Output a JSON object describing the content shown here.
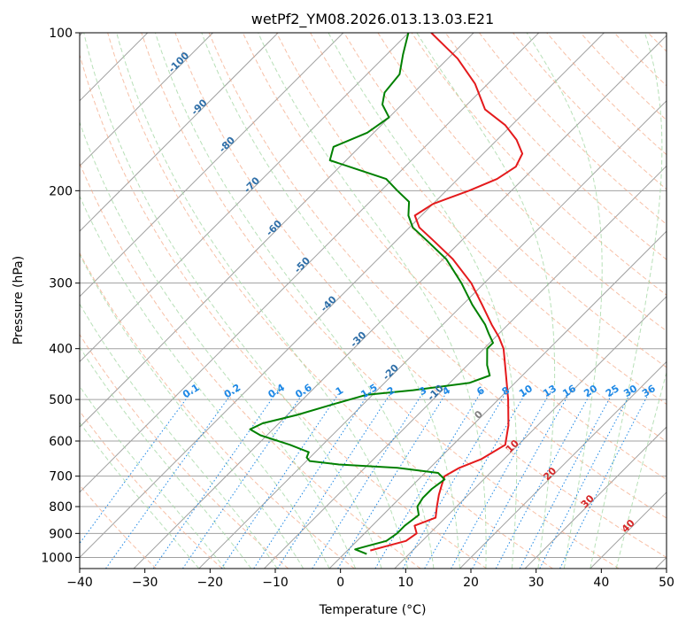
{
  "chart_data": {
    "type": "line",
    "title": "wetPf2_YM08.2026.013.13.03.E21",
    "xlabel": "Temperature (°C)",
    "ylabel": "Pressure (hPa)",
    "xlim": [
      -40,
      50
    ],
    "ylim": [
      1050,
      100
    ],
    "y_scale": "log",
    "grid": true,
    "xticks": [
      -40,
      -30,
      -20,
      -10,
      0,
      10,
      20,
      30,
      40,
      50
    ],
    "xtick_labels": [
      "−40",
      "−30",
      "−20",
      "−10",
      "0",
      "10",
      "20",
      "30",
      "40",
      "50"
    ],
    "yticks": [
      100,
      200,
      300,
      400,
      500,
      600,
      700,
      800,
      900,
      1000
    ],
    "ytick_labels": [
      "100",
      "200",
      "300",
      "400",
      "500",
      "600",
      "700",
      "800",
      "900",
      "1000"
    ],
    "series": [
      {
        "color": "#e41a1c",
        "points": [
          {
            "p": 970,
            "t": 3.5
          },
          {
            "p": 950,
            "t": 5.5
          },
          {
            "p": 930,
            "t": 7.5
          },
          {
            "p": 900,
            "t": 8.0
          },
          {
            "p": 870,
            "t": 6.5
          },
          {
            "p": 840,
            "t": 8.5
          },
          {
            "p": 800,
            "t": 7.0
          },
          {
            "p": 760,
            "t": 5.5
          },
          {
            "p": 730,
            "t": 4.5
          },
          {
            "p": 700,
            "t": 3.5
          },
          {
            "p": 675,
            "t": 4.5
          },
          {
            "p": 650,
            "t": 6.5
          },
          {
            "p": 610,
            "t": 8.0
          },
          {
            "p": 560,
            "t": 5.5
          },
          {
            "p": 500,
            "t": 1.5
          },
          {
            "p": 450,
            "t": -2.5
          },
          {
            "p": 400,
            "t": -7.0
          },
          {
            "p": 380,
            "t": -9.5
          },
          {
            "p": 360,
            "t": -12.5
          },
          {
            "p": 330,
            "t": -17.0
          },
          {
            "p": 300,
            "t": -22.0
          },
          {
            "p": 270,
            "t": -28.5
          },
          {
            "p": 250,
            "t": -34.0
          },
          {
            "p": 235,
            "t": -38.5
          },
          {
            "p": 223,
            "t": -41.0
          },
          {
            "p": 212,
            "t": -40.0
          },
          {
            "p": 200,
            "t": -36.5
          },
          {
            "p": 190,
            "t": -34.0
          },
          {
            "p": 180,
            "t": -33.0
          },
          {
            "p": 170,
            "t": -34.0
          },
          {
            "p": 160,
            "t": -37.0
          },
          {
            "p": 150,
            "t": -41.0
          },
          {
            "p": 140,
            "t": -46.5
          },
          {
            "p": 125,
            "t": -52.0
          },
          {
            "p": 112,
            "t": -58.5
          },
          {
            "p": 100,
            "t": -66.5
          }
        ]
      },
      {
        "color": "#008000",
        "points": [
          {
            "p": 985,
            "t": 3.5
          },
          {
            "p": 965,
            "t": 1.0
          },
          {
            "p": 950,
            "t": 2.5
          },
          {
            "p": 930,
            "t": 4.5
          },
          {
            "p": 900,
            "t": 5.0
          },
          {
            "p": 870,
            "t": 5.0
          },
          {
            "p": 830,
            "t": 5.5
          },
          {
            "p": 800,
            "t": 4.0
          },
          {
            "p": 770,
            "t": 3.5
          },
          {
            "p": 740,
            "t": 3.5
          },
          {
            "p": 710,
            "t": 4.0
          },
          {
            "p": 690,
            "t": 2.0
          },
          {
            "p": 675,
            "t": -5.0
          },
          {
            "p": 665,
            "t": -14.5
          },
          {
            "p": 655,
            "t": -19.5
          },
          {
            "p": 645,
            "t": -20.5
          },
          {
            "p": 630,
            "t": -21.0
          },
          {
            "p": 610,
            "t": -25.0
          },
          {
            "p": 585,
            "t": -31.0
          },
          {
            "p": 570,
            "t": -33.5
          },
          {
            "p": 555,
            "t": -32.5
          },
          {
            "p": 535,
            "t": -28.5
          },
          {
            "p": 510,
            "t": -24.5
          },
          {
            "p": 490,
            "t": -21.0
          },
          {
            "p": 480,
            "t": -14.5
          },
          {
            "p": 465,
            "t": -7.0
          },
          {
            "p": 450,
            "t": -5.0
          },
          {
            "p": 430,
            "t": -7.0
          },
          {
            "p": 400,
            "t": -9.5
          },
          {
            "p": 390,
            "t": -9.5
          },
          {
            "p": 375,
            "t": -11.5
          },
          {
            "p": 360,
            "t": -13.5
          },
          {
            "p": 330,
            "t": -18.5
          },
          {
            "p": 300,
            "t": -23.5
          },
          {
            "p": 270,
            "t": -29.5
          },
          {
            "p": 250,
            "t": -35.0
          },
          {
            "p": 235,
            "t": -39.5
          },
          {
            "p": 223,
            "t": -42.0
          },
          {
            "p": 210,
            "t": -44.0
          },
          {
            "p": 200,
            "t": -47.5
          },
          {
            "p": 190,
            "t": -51.0
          },
          {
            "p": 182,
            "t": -57.0
          },
          {
            "p": 175,
            "t": -62.5
          },
          {
            "p": 165,
            "t": -64.0
          },
          {
            "p": 155,
            "t": -61.0
          },
          {
            "p": 145,
            "t": -60.0
          },
          {
            "p": 137,
            "t": -63.0
          },
          {
            "p": 130,
            "t": -64.5
          },
          {
            "p": 120,
            "t": -65.0
          },
          {
            "p": 110,
            "t": -67.5
          },
          {
            "p": 100,
            "t": -70.0
          }
        ]
      }
    ],
    "background_lines": {
      "isotherms_color": "#a0a0a0",
      "dry_adiabats_color": "#f4a582",
      "moist_adiabats_color": "#a6d8a6",
      "mixing_ratio_color": "#1e88e5",
      "mixing_ratio_labels": [
        "0.1",
        "0.2",
        "0.4",
        "0.6",
        "1",
        "1.5",
        "2",
        "3",
        "4",
        "6",
        "8",
        "10",
        "13",
        "16",
        "20",
        "25",
        "30",
        "36"
      ],
      "mixing_ratio_values": [
        0.1,
        0.2,
        0.4,
        0.6,
        1,
        1.5,
        2,
        3,
        4,
        6,
        8,
        10,
        13,
        16,
        20,
        25,
        30,
        36
      ],
      "mixing_ratio_label_p": 480,
      "isotherm_labels": [
        "-100",
        "-90",
        "-80",
        "-70",
        "-60",
        "-50",
        "-40",
        "-30",
        "-20",
        "-10"
      ],
      "isotherm_label_temps": [
        -100,
        -90,
        -80,
        -70,
        -60,
        -50,
        -40,
        -30,
        -20,
        -10
      ],
      "isotherm_label_pressures": [
        115,
        140,
        165,
        197,
        238,
        280,
        332,
        388,
        448,
        490
      ],
      "red_labels": [
        "10",
        "20",
        "30",
        "40"
      ],
      "red_label_temps": [
        10,
        20,
        30,
        40
      ],
      "red_label_pressures": [
        620,
        700,
        790,
        880
      ],
      "gray_labels": [
        "0"
      ],
      "gray_label_temps": [
        0
      ],
      "gray_label_pressures": [
        540
      ]
    }
  }
}
